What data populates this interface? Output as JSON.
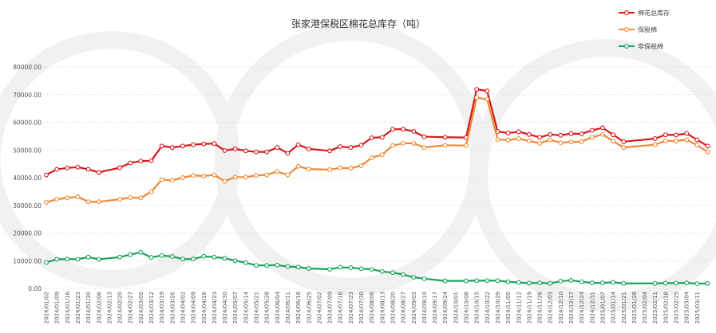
{
  "chart_data": {
    "type": "line",
    "title": "张家港保税区棉花总库存（吨）",
    "xlabel": "",
    "ylabel": "",
    "ylim": [
      0,
      80000
    ],
    "yticks": [
      "0.00",
      "10000.00",
      "20000.00",
      "30000.00",
      "40000.00",
      "50000.00",
      "60000.00",
      "70000.00",
      "80000.00"
    ],
    "grid": true,
    "legend_position": "top-right",
    "categories": [
      "2024/01/02",
      "2024/01/09",
      "2024/01/16",
      "2024/01/23",
      "2024/01/30",
      "2024/02/06",
      "2024/02/13",
      "2024/02/20",
      "2024/02/27",
      "2024/03/05",
      "2024/03/12",
      "2024/03/19",
      "2024/03/26",
      "2024/04/02",
      "2024/04/09",
      "2024/04/16",
      "2024/04/23",
      "2024/04/30",
      "2024/05/07",
      "2024/05/14",
      "2024/05/21",
      "2024/05/28",
      "2024/06/04",
      "2024/06/11",
      "2024/06/18",
      "2024/06/25",
      "2024/07/02",
      "2024/07/09",
      "2024/07/16",
      "2024/07/23",
      "2024/07/30",
      "2024/08/06",
      "2024/08/13",
      "2024/08/20",
      "2024/08/27",
      "2024/09/03",
      "2024/09/10",
      "2024/09/17",
      "2024/09/24",
      "2024/10/01",
      "2024/10/08",
      "2024/10/15",
      "2024/10/22",
      "2024/10/29",
      "2024/11/05",
      "2024/11/12",
      "2024/11/19",
      "2024/11/26",
      "2024/12/03",
      "2024/12/10",
      "2024/12/17",
      "2024/12/24",
      "2024/12/31",
      "2025/01/07",
      "2025/01/14",
      "2025/01/21",
      "2025/01/28",
      "2025/02/04",
      "2025/02/11",
      "2025/02/18",
      "2025/02/25",
      "2025/03/04",
      "2025/03/11",
      ""
    ],
    "series": [
      {
        "name": "棉花总库存",
        "color": "#d7191c",
        "values": [
          41000,
          43000,
          43500,
          43800,
          43000,
          41900,
          null,
          43600,
          45300,
          46000,
          46100,
          51400,
          50900,
          51400,
          51900,
          52200,
          52300,
          49800,
          50400,
          49700,
          49300,
          49300,
          50900,
          48800,
          51900,
          50400,
          null,
          49700,
          51200,
          50900,
          51700,
          54400,
          54600,
          57500,
          57500,
          56700,
          54800,
          null,
          54600,
          null,
          54500,
          71900,
          71300,
          56700,
          56100,
          56600,
          55600,
          54600,
          55600,
          55300,
          55900,
          55800,
          57100,
          58000,
          55500,
          53000,
          null,
          null,
          54100,
          55500,
          55400,
          56000,
          53700,
          51400
        ]
      },
      {
        "name": "保税棉",
        "color": "#ed8b3a",
        "values": [
          31100,
          32200,
          32700,
          33100,
          31300,
          31300,
          null,
          32200,
          32800,
          32700,
          34900,
          39300,
          39000,
          40000,
          40800,
          40600,
          41000,
          38700,
          40200,
          40200,
          40800,
          41000,
          42200,
          41000,
          44100,
          43100,
          null,
          42900,
          43500,
          43400,
          44300,
          47200,
          48300,
          51600,
          52400,
          52400,
          50900,
          null,
          51700,
          null,
          51600,
          68900,
          68300,
          53800,
          53600,
          54100,
          53300,
          52400,
          53700,
          52600,
          52900,
          53000,
          54600,
          55600,
          53200,
          50900,
          null,
          null,
          51900,
          53300,
          53200,
          53700,
          51700,
          49300
        ]
      },
      {
        "name": "非保税棉",
        "color": "#1aa35a",
        "values": [
          9400,
          10500,
          10600,
          10500,
          11300,
          10500,
          null,
          11300,
          12200,
          13000,
          11200,
          11900,
          11500,
          10600,
          10600,
          11600,
          11300,
          10900,
          10000,
          9300,
          8300,
          8300,
          8400,
          7900,
          7700,
          7200,
          null,
          6900,
          7600,
          7500,
          7100,
          6900,
          6100,
          5700,
          5000,
          4000,
          3500,
          null,
          2700,
          null,
          2700,
          2800,
          2800,
          2800,
          2400,
          2100,
          1900,
          2000,
          1800,
          2600,
          2900,
          2400,
          2000,
          2000,
          2200,
          1800,
          null,
          null,
          1800,
          1900,
          1900,
          2000,
          1700,
          1800
        ]
      }
    ]
  }
}
